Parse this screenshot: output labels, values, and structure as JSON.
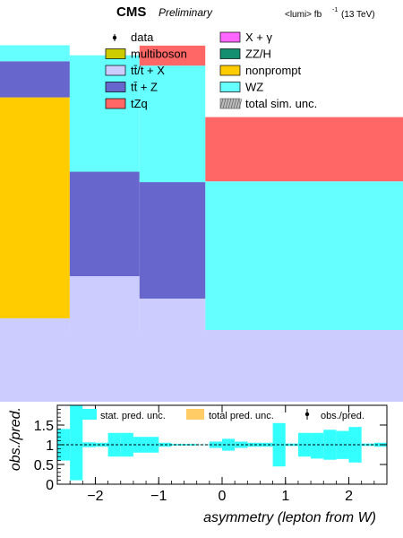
{
  "header": {
    "experiment": "CMS",
    "status": "Preliminary",
    "lumi_prefix": "<lumi> fb",
    "lumi_superscript": "-1",
    "energy": "(13 TeV)"
  },
  "legend": {
    "items": [
      {
        "label": "data",
        "marker": "point",
        "color": "#000000"
      },
      {
        "label": "X + γ",
        "marker": "box",
        "color": "#ff66ff"
      },
      {
        "label": "multiboson",
        "marker": "box",
        "color": "#cccc00"
      },
      {
        "label": "ZZ/H",
        "marker": "box",
        "color": "#149070"
      },
      {
        "label": "tt̄/t + X",
        "marker": "box",
        "color": "#ccccff"
      },
      {
        "label": "nonprompt",
        "marker": "box",
        "color": "#ffcc00"
      },
      {
        "label": "tt̄ + Z",
        "marker": "box",
        "color": "#6666cc"
      },
      {
        "label": "WZ",
        "marker": "box",
        "color": "#66ffff"
      },
      {
        "label": "tZq",
        "marker": "box",
        "color": "#ff6666"
      },
      {
        "label": "total sim. unc.",
        "marker": "hatch",
        "color": "#888888"
      }
    ]
  },
  "ratio_legend": {
    "stat": "stat. pred. unc.",
    "total": "total pred. unc.",
    "obs": "obs./pred."
  },
  "colors": {
    "ttX": "#ccccff",
    "ttZ": "#6666cc",
    "nonprompt": "#ffcc00",
    "WZ": "#66ffff",
    "tZq": "#ff6666",
    "stat_band": "#33ffff",
    "total_band": "#ffcc66"
  },
  "chart_data": [
    {
      "type": "bar",
      "stacked": true,
      "note": "upper stacked histogram, visible portion only (no y axis printed)",
      "x_bin_edges": [
        -2.6,
        -1.7,
        -0.8,
        0.05,
        2.6
      ],
      "stack_order_bottom_to_top": [
        "tt̄/t + X",
        "nonprompt",
        "tt̄ + Z",
        "WZ",
        "tZq"
      ],
      "bins": [
        {
          "range": [
            -2.6,
            -1.7
          ],
          "layers_relative": {
            "nonprompt": 0.55,
            "tt̄ + Z": 0.09,
            "WZ": 0.04
          }
        },
        {
          "range": [
            -1.7,
            -0.8
          ],
          "layers_relative": {
            "tt̄ + Z": 0.26,
            "WZ": 0.29
          }
        },
        {
          "range": [
            -0.8,
            0.05
          ],
          "layers_relative": {
            "tt̄ + Z": 0.29,
            "WZ": 0.29,
            "tZq": 0.05
          }
        },
        {
          "range": [
            0.05,
            2.6
          ],
          "layers_relative": {
            "WZ": 0.37,
            "tZq": 0.16
          }
        }
      ]
    },
    {
      "type": "bar",
      "title": "",
      "xlabel": "asymmetry (lepton from W)",
      "ylabel": "obs./pred.",
      "xlim": [
        -2.6,
        2.6
      ],
      "ylim": [
        0,
        2
      ],
      "x_ticks": [
        -2,
        -1,
        0,
        1,
        2
      ],
      "x_tick_labels": [
        "−2",
        "−1",
        "0",
        "1",
        "2"
      ],
      "y_ticks": [
        0,
        0.5,
        1,
        1.5
      ],
      "y_tick_labels": [
        "0",
        "0.5",
        "1",
        "1.5"
      ],
      "reference_line": 1,
      "bin_edges": [
        -2.6,
        -2.4,
        -2.2,
        -2.0,
        -1.8,
        -1.6,
        -1.4,
        -1.2,
        -1.0,
        -0.8,
        -0.6,
        -0.4,
        -0.2,
        0.0,
        0.2,
        0.4,
        0.6,
        0.8,
        1.0,
        1.2,
        1.4,
        1.6,
        1.8,
        2.0,
        2.2,
        2.4,
        2.6
      ],
      "series": [
        {
          "name": "stat. pred. unc.",
          "low": [
            0.6,
            0.1,
            0.94,
            0.95,
            0.7,
            0.7,
            0.8,
            0.8,
            0.95,
            0.98,
            0.98,
            0.99,
            0.92,
            0.85,
            0.92,
            0.95,
            0.95,
            0.45,
            0.97,
            0.7,
            0.65,
            0.62,
            0.64,
            0.55,
            0.97,
            0.95
          ],
          "high": [
            1.4,
            2.1,
            1.06,
            1.05,
            1.3,
            1.3,
            1.2,
            1.2,
            1.05,
            1.02,
            1.02,
            1.01,
            1.08,
            1.15,
            1.08,
            1.05,
            1.05,
            1.55,
            1.03,
            1.3,
            1.3,
            1.38,
            1.35,
            1.45,
            1.03,
            1.05
          ]
        }
      ]
    }
  ]
}
